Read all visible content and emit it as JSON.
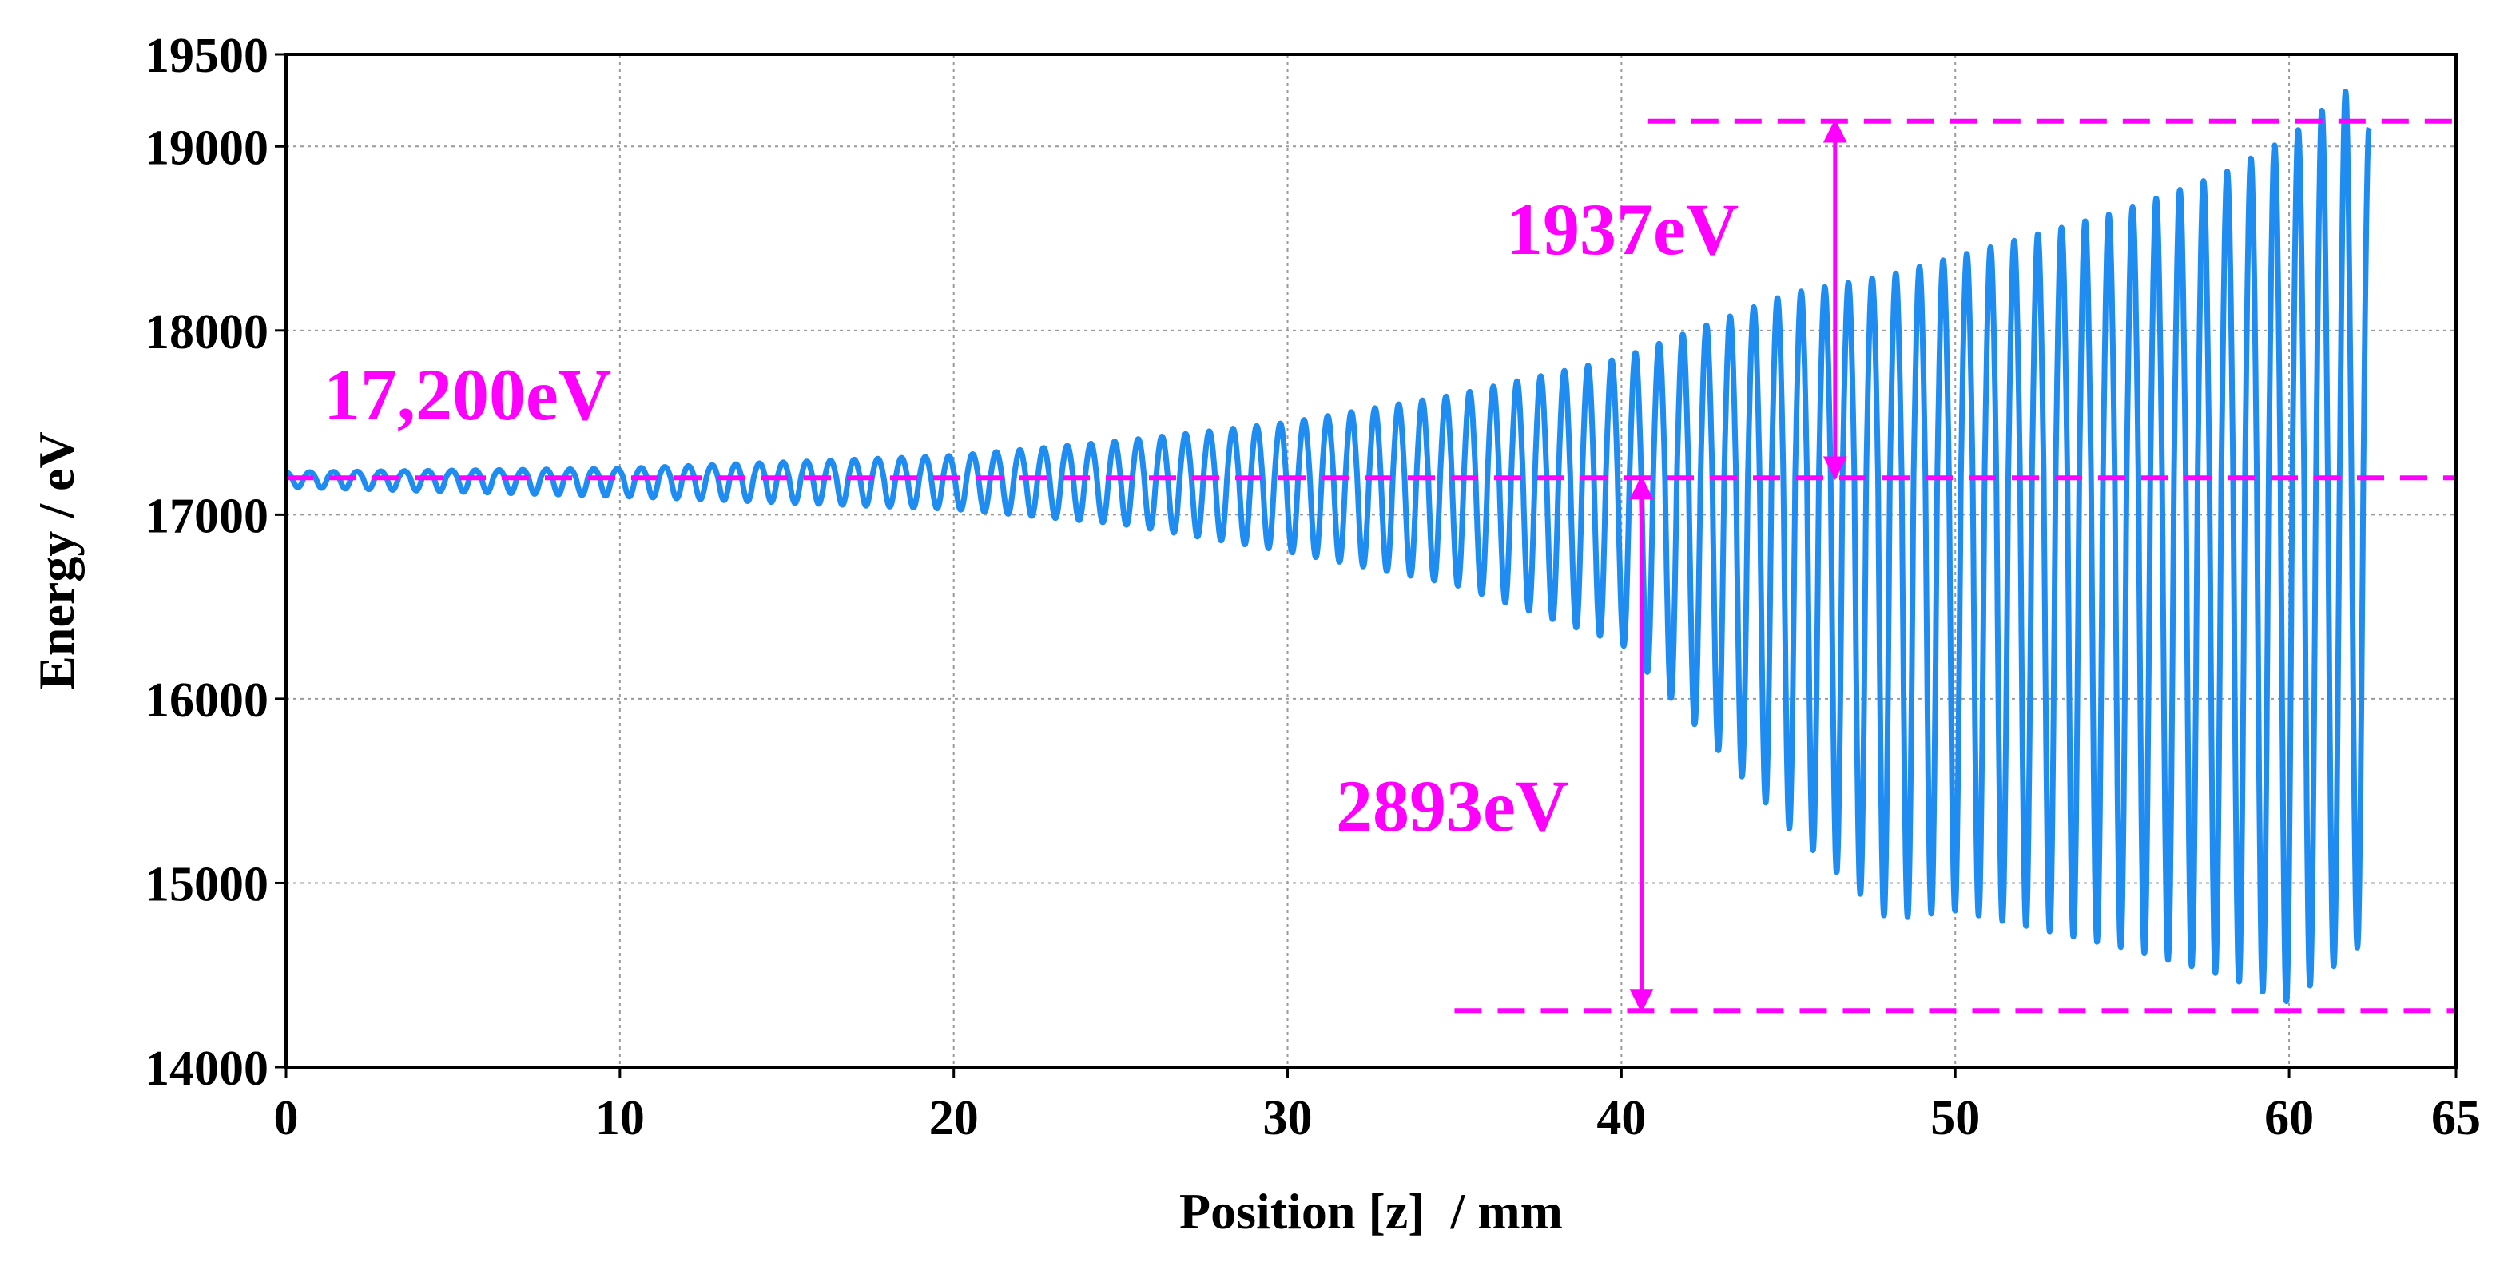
{
  "chart_data": {
    "type": "line",
    "title": "",
    "xlabel": "Position [z]  / mm",
    "ylabel": "Energy / eV",
    "xlim": [
      0,
      65
    ],
    "ylim": [
      14000,
      19500
    ],
    "grid": true,
    "x_ticks": [
      0,
      10,
      20,
      30,
      40,
      50,
      60,
      65
    ],
    "y_ticks": [
      14000,
      15000,
      16000,
      17000,
      18000,
      19000,
      19500
    ],
    "x_tick_labels": [
      "0",
      "10",
      "20",
      "30",
      "40",
      "50",
      "60",
      "65"
    ],
    "y_tick_labels": [
      "14000",
      "15000",
      "16000",
      "17000",
      "18000",
      "19000",
      "19500"
    ],
    "series": [
      {
        "name": "Energy",
        "color": "#1e8cf0",
        "style": "oscillating band",
        "z_start": 0,
        "z_end": 62.4,
        "center": 17200,
        "cycles": 88,
        "envelope": [
          {
            "z": 0,
            "max": 17230,
            "min": 17150
          },
          {
            "z": 10,
            "max": 17250,
            "min": 17100
          },
          {
            "z": 20,
            "max": 17320,
            "min": 17030
          },
          {
            "z": 25,
            "max": 17400,
            "min": 16950
          },
          {
            "z": 30,
            "max": 17500,
            "min": 16800
          },
          {
            "z": 35,
            "max": 17650,
            "min": 16620
          },
          {
            "z": 40,
            "max": 17850,
            "min": 16300
          },
          {
            "z": 45,
            "max": 18200,
            "min": 15300
          },
          {
            "z": 48,
            "max": 18300,
            "min": 14800
          },
          {
            "z": 50,
            "max": 18400,
            "min": 14850
          },
          {
            "z": 55,
            "max": 18650,
            "min": 14650
          },
          {
            "z": 58,
            "max": 18850,
            "min": 14500
          },
          {
            "z": 60,
            "max": 19050,
            "min": 14350
          },
          {
            "z": 61.7,
            "max": 19300,
            "min": 14600
          },
          {
            "z": 62.4,
            "max": 19100,
            "min": 14700
          }
        ]
      }
    ],
    "reference_lines": [
      {
        "name": "17,200eV level",
        "y": 17200,
        "x_from": 0,
        "x_to": 65,
        "color": "#ff00ff"
      },
      {
        "name": "max level",
        "y": 19137,
        "x_from": 40.8,
        "x_to": 65,
        "color": "#ff00ff"
      },
      {
        "name": "min level",
        "y": 14307,
        "x_from": 35,
        "x_to": 65,
        "color": "#ff00ff"
      }
    ],
    "arrows": [
      {
        "name": "1937eV span",
        "x": 46.4,
        "y_from": 17200,
        "y_to": 19137,
        "label": "1937eV"
      },
      {
        "name": "2893eV span",
        "x": 40.6,
        "y_from": 17200,
        "y_to": 14307,
        "label": "2893eV"
      }
    ],
    "annotations": {
      "base_label": "17,200eV",
      "upper_label": "1937eV",
      "lower_label": "2893eV"
    }
  },
  "colors": {
    "series": "#1e8cf0",
    "annotation": "#ff00ff",
    "grid": "#9a9a9a",
    "axis": "#000000"
  }
}
